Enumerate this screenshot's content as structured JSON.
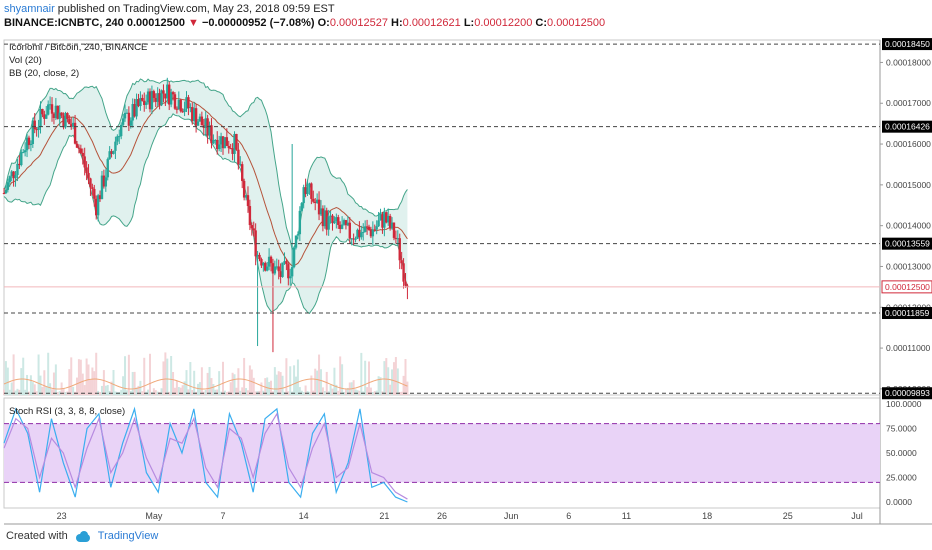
{
  "header": {
    "author": "shyamnair",
    "published_text": " published on TradingView.com, May 23, 2018 09:59 EST",
    "symbol_interval": "BINANCE:ICNBTC, 240 ",
    "last_price": "0.00012500",
    "change_arrow": "▼",
    "change": "−0.00000952 (−7.08%)",
    "o_label": "O:",
    "o_value": "0.00012527",
    "h_label": "H:",
    "h_value": "0.00012621",
    "l_label": "L:",
    "l_value": "0.00012200",
    "c_label": "C:",
    "c_value": "0.00012500"
  },
  "legend": {
    "title": "Iconomi / Bitcoin, 240, BINANCE",
    "vol": "Vol (20)",
    "bb": "BB (20, close, 2)",
    "stoch": "Stoch RSI (3, 3, 8, 8, close)"
  },
  "footer": {
    "created_with": "Created with",
    "brand": "TradingView"
  },
  "colors": {
    "up": "#26a69a",
    "down": "#d0283a",
    "bb_line": "#45a58a",
    "bb_fill": "#e0f1ee",
    "bb_mid": "#b5533a",
    "stoch_k": "#3aaef0",
    "stoch_d": "#b78be0",
    "stoch_band": "#e9d3f7",
    "stoch_bound": "#8e2aa8",
    "vol_ma": "#f0a97a",
    "hline": "#444444",
    "price_line": "#f2b6bb"
  },
  "chart_data": [
    {
      "type": "candlestick",
      "title": "Iconomi / Bitcoin, 240, BINANCE",
      "ylim": [
        9.85e-05,
        0.0001855
      ],
      "price_ticks": [
        0.0001,
        0.00011,
        0.00012,
        0.00013,
        0.00014,
        0.00015,
        0.00016,
        0.00017,
        0.00018
      ],
      "price_tick_labels": [
        "0.00010000",
        "0.00011000",
        "0.00012000",
        "0.00013000",
        "0.00014000",
        "0.00015000",
        "0.00016000",
        "0.00017000",
        "0.00018000"
      ],
      "horizontal_levels": [
        {
          "value": 0.0001845,
          "label": "0.00018450"
        },
        {
          "value": 0.00016426,
          "label": "0.00016426"
        },
        {
          "value": 0.00013559,
          "label": "0.00013559"
        },
        {
          "value": 0.00011859,
          "label": "0.00011859"
        },
        {
          "value": 9.893e-05,
          "label": "0.00009893"
        }
      ],
      "last_price": {
        "value": 0.000125,
        "label": "0.00012500"
      },
      "x_axis": {
        "start": "2018-04-18",
        "end": "2018-07-03",
        "tick_dates": [
          "2018-04-23",
          "2018-05-01",
          "2018-05-07",
          "2018-05-14",
          "2018-05-21",
          "2018-05-26",
          "2018-06-01",
          "2018-06-06",
          "2018-06-11",
          "2018-06-18",
          "2018-06-25",
          "2018-07-01"
        ],
        "tick_labels": [
          "23",
          "May",
          "7",
          "14",
          "21",
          "26",
          "Jun",
          "6",
          "11",
          "18",
          "25",
          "Jul"
        ]
      },
      "close_path": [
        {
          "date": "2018-04-18",
          "close": 0.000148
        },
        {
          "date": "2018-04-20",
          "close": 0.000161
        },
        {
          "date": "2018-04-22",
          "close": 0.00017
        },
        {
          "date": "2018-04-24",
          "close": 0.000164
        },
        {
          "date": "2018-04-26",
          "close": 0.000145
        },
        {
          "date": "2018-04-28",
          "close": 0.000164
        },
        {
          "date": "2018-04-30",
          "close": 0.00017
        },
        {
          "date": "2018-05-02",
          "close": 0.000173
        },
        {
          "date": "2018-05-04",
          "close": 0.000169
        },
        {
          "date": "2018-05-06",
          "close": 0.000162
        },
        {
          "date": "2018-05-08",
          "close": 0.00016
        },
        {
          "date": "2018-05-09",
          "close": 0.000145
        },
        {
          "date": "2018-05-10",
          "close": 0.000133
        },
        {
          "date": "2018-05-12",
          "close": 0.000128
        },
        {
          "date": "2018-05-13",
          "close": 0.00013
        },
        {
          "date": "2018-05-14",
          "close": 0.00015
        },
        {
          "date": "2018-05-16",
          "close": 0.000141
        },
        {
          "date": "2018-05-18",
          "close": 0.000138
        },
        {
          "date": "2018-05-20",
          "close": 0.000139
        },
        {
          "date": "2018-05-21",
          "close": 0.000142
        },
        {
          "date": "2018-05-22",
          "close": 0.000137
        },
        {
          "date": "2018-05-23",
          "close": 0.000125
        }
      ],
      "volume_ma": "present"
    },
    {
      "type": "line",
      "title": "Stoch RSI (3, 3, 8, 8, close)",
      "ylim": [
        0,
        100
      ],
      "y_ticks": [
        0,
        25,
        50,
        75,
        100
      ],
      "y_tick_labels": [
        "0.0000",
        "25.0000",
        "50.0000",
        "75.0000",
        "100.0000"
      ],
      "bands": {
        "upper": 80,
        "lower": 20
      },
      "series": [
        {
          "values": [
            60,
            95,
            70,
            10,
            85,
            40,
            5,
            75,
            90,
            15,
            60,
            95,
            30,
            10,
            80,
            50,
            95,
            20,
            5,
            90,
            60,
            10,
            85,
            95,
            20,
            5,
            70,
            90,
            10,
            40,
            95,
            15,
            20,
            5,
            0
          ]
        },
        {
          "values": [
            55,
            85,
            75,
            25,
            65,
            50,
            15,
            55,
            85,
            30,
            50,
            85,
            45,
            20,
            65,
            60,
            85,
            35,
            15,
            75,
            65,
            25,
            70,
            90,
            35,
            15,
            55,
            80,
            25,
            35,
            80,
            30,
            25,
            10,
            3
          ]
        }
      ]
    }
  ]
}
